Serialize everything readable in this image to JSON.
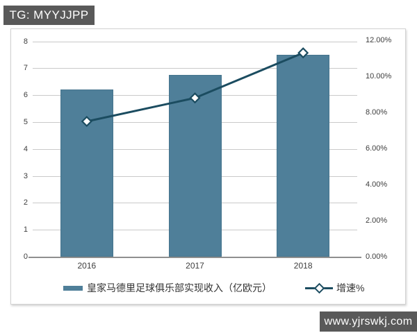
{
  "header": {
    "badge_label": "TG: MYYJJPP"
  },
  "watermark": {
    "text": "www.yjrswkj.com"
  },
  "chart_data": {
    "type": "bar",
    "subtype": "bar-line-combo",
    "categories": [
      "2016",
      "2017",
      "2018"
    ],
    "series": [
      {
        "name": "皇家马德里足球俱乐部实现收入（亿欧元）",
        "type": "bar",
        "axis": "left",
        "values": [
          6.2,
          6.75,
          7.5
        ],
        "color": "#4f7f99"
      },
      {
        "name": "增速%",
        "type": "line",
        "axis": "right",
        "unit": "%",
        "values": [
          7.5,
          8.8,
          11.3
        ],
        "color": "#1b4c60",
        "marker": "white-diamond"
      }
    ],
    "left_axis": {
      "min": 0,
      "max": 8,
      "step": 1,
      "ticks": [
        "0",
        "1",
        "2",
        "3",
        "4",
        "5",
        "6",
        "7",
        "8"
      ]
    },
    "right_axis": {
      "min": 0,
      "max": 12,
      "step": 2,
      "ticks": [
        "0.00%",
        "2.00%",
        "4.00%",
        "6.00%",
        "8.00%",
        "10.00%",
        "12.00%"
      ]
    },
    "grid": true,
    "legend_position": "bottom"
  },
  "colors": {
    "badge_bg": "#595959",
    "badge_text": "#ffffff",
    "bar": "#4f7f99",
    "line": "#1b4c60",
    "gridline": "#c9c9c9",
    "axis_line": "#8f8f8f",
    "axis_text": "#3d3d3d",
    "box_border": "#d2d2d2"
  }
}
